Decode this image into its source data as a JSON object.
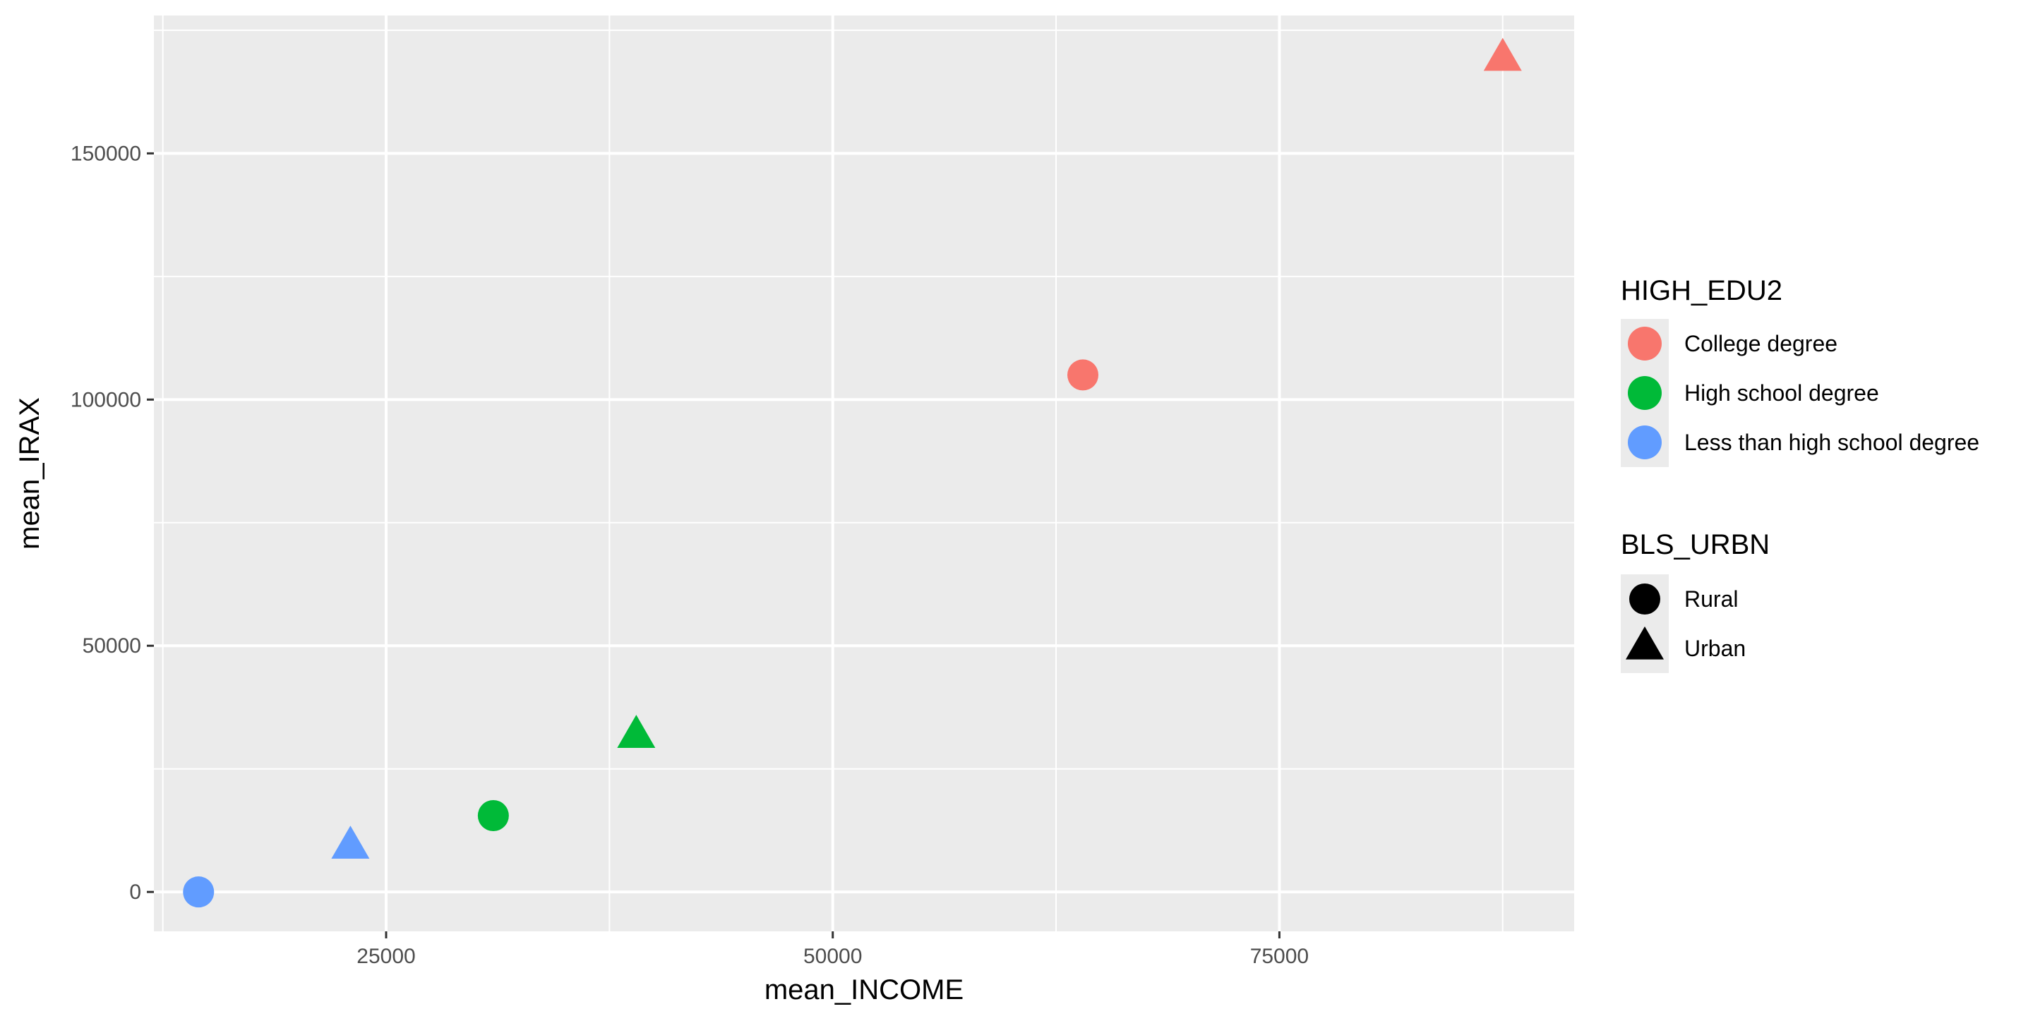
{
  "chart_data": {
    "type": "scatter",
    "title": "",
    "xlabel": "mean_INCOME",
    "ylabel": "mean_IRAX",
    "xlim": [
      12000,
      91500
    ],
    "ylim": [
      -8000,
      178000
    ],
    "x_ticks": [
      25000,
      50000,
      75000
    ],
    "y_ticks": [
      0,
      50000,
      100000,
      150000
    ],
    "x_tick_labels": [
      "25000",
      "50000",
      "75000"
    ],
    "y_tick_labels": [
      "0",
      "50000",
      "100000",
      "150000"
    ],
    "grid": true,
    "legend_placement": "right",
    "points": [
      {
        "x": 14500,
        "y": 0,
        "color_group": "Less than high school degree",
        "shape_group": "Rural"
      },
      {
        "x": 23000,
        "y": 9000,
        "color_group": "Less than high school degree",
        "shape_group": "Urban"
      },
      {
        "x": 31000,
        "y": 15500,
        "color_group": "High school degree",
        "shape_group": "Rural"
      },
      {
        "x": 39000,
        "y": 31500,
        "color_group": "High school degree",
        "shape_group": "Urban"
      },
      {
        "x": 64000,
        "y": 105000,
        "color_group": "College degree",
        "shape_group": "Rural"
      },
      {
        "x": 87500,
        "y": 169000,
        "color_group": "College degree",
        "shape_group": "Urban"
      }
    ],
    "legends": [
      {
        "title": "HIGH_EDU2",
        "kind": "color",
        "entries": [
          {
            "label": "College degree",
            "color": "#F8766D"
          },
          {
            "label": "High school degree",
            "color": "#00BA38"
          },
          {
            "label": "Less than high school degree",
            "color": "#619CFF"
          }
        ]
      },
      {
        "title": "BLS_URBN",
        "kind": "shape",
        "entries": [
          {
            "label": "Rural",
            "shape": "circle"
          },
          {
            "label": "Urban",
            "shape": "triangle"
          }
        ]
      }
    ],
    "colors": {
      "panel": "#EBEBEB",
      "grid": "#FFFFFF",
      "tick": "#333333",
      "legend_key_bg": "#EBEBEB"
    }
  }
}
